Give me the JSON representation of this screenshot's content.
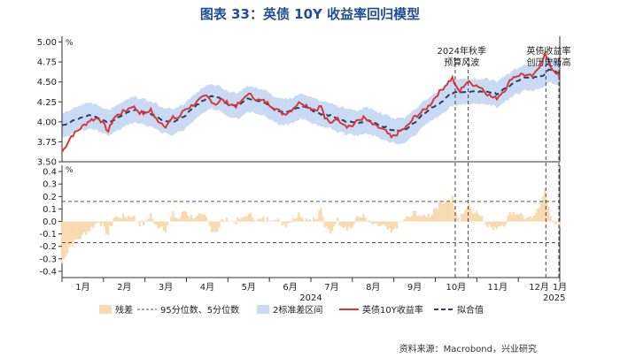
{
  "chart_data": {
    "title": "图表 33：英债 10Y 收益率回归模型",
    "type": "line",
    "top_panel": {
      "unit": "%",
      "ylim": [
        3.5,
        5.05
      ],
      "yticks": [
        "5.00",
        "4.75",
        "4.50",
        "4.25",
        "4.00",
        "3.75",
        "3.50"
      ]
    },
    "bottom_panel": {
      "unit": "%",
      "ylim": [
        -0.45,
        0.45
      ],
      "yticks": [
        "0.4",
        "0.3",
        "0.2",
        "0.1",
        "0.0",
        "-0.1",
        "-0.2",
        "-0.3",
        "-0.4"
      ],
      "band_upper": 0.16,
      "band_lower": -0.17
    },
    "x_months": [
      "1月",
      "2月",
      "3月",
      "4月",
      "5月",
      "6月",
      "7月",
      "8月",
      "9月",
      "10月",
      "11月",
      "12月",
      "1月"
    ],
    "x_year_labels": [
      "2024",
      "2025"
    ],
    "x_index_range": [
      0,
      269
    ],
    "actual_key": [
      [
        0,
        3.62
      ],
      [
        5,
        3.82
      ],
      [
        10,
        3.92
      ],
      [
        15,
        4.02
      ],
      [
        20,
        4.05
      ],
      [
        23,
        3.95
      ],
      [
        25,
        3.88
      ],
      [
        28,
        4.05
      ],
      [
        31,
        4.1
      ],
      [
        35,
        4.15
      ],
      [
        38,
        4.2
      ],
      [
        42,
        4.12
      ],
      [
        45,
        4.1
      ],
      [
        48,
        4.16
      ],
      [
        50,
        4.05
      ],
      [
        53,
        4.0
      ],
      [
        56,
        3.95
      ],
      [
        60,
        4.05
      ],
      [
        63,
        4.05
      ],
      [
        66,
        4.15
      ],
      [
        70,
        4.2
      ],
      [
        73,
        4.25
      ],
      [
        76,
        4.3
      ],
      [
        78,
        4.32
      ],
      [
        80,
        4.28
      ],
      [
        83,
        4.22
      ],
      [
        86,
        4.28
      ],
      [
        88,
        4.25
      ],
      [
        91,
        4.22
      ],
      [
        94,
        4.2
      ],
      [
        97,
        4.25
      ],
      [
        100,
        4.35
      ],
      [
        103,
        4.32
      ],
      [
        106,
        4.27
      ],
      [
        109,
        4.26
      ],
      [
        112,
        4.22
      ],
      [
        115,
        4.18
      ],
      [
        118,
        4.12
      ],
      [
        120,
        4.1
      ],
      [
        123,
        4.13
      ],
      [
        126,
        4.2
      ],
      [
        129,
        4.25
      ],
      [
        131,
        4.22
      ],
      [
        134,
        4.18
      ],
      [
        137,
        4.15
      ],
      [
        140,
        4.2
      ],
      [
        142,
        4.05
      ],
      [
        145,
        3.98
      ],
      [
        148,
        4.05
      ],
      [
        151,
        4.0
      ],
      [
        154,
        3.95
      ],
      [
        157,
        3.95
      ],
      [
        160,
        4.02
      ],
      [
        163,
        4.05
      ],
      [
        166,
        4.0
      ],
      [
        169,
        3.95
      ],
      [
        172,
        3.92
      ],
      [
        175,
        3.88
      ],
      [
        178,
        3.8
      ],
      [
        181,
        3.85
      ],
      [
        184,
        3.9
      ],
      [
        187,
        3.95
      ],
      [
        190,
        4.05
      ],
      [
        193,
        4.1
      ],
      [
        196,
        4.15
      ],
      [
        199,
        4.22
      ],
      [
        202,
        4.32
      ],
      [
        205,
        4.4
      ],
      [
        208,
        4.48
      ],
      [
        211,
        4.55
      ],
      [
        213,
        4.43
      ],
      [
        215,
        4.38
      ],
      [
        217,
        4.45
      ],
      [
        219,
        4.5
      ],
      [
        221,
        4.48
      ],
      [
        224,
        4.46
      ],
      [
        227,
        4.42
      ],
      [
        230,
        4.35
      ],
      [
        233,
        4.3
      ],
      [
        235,
        4.3
      ],
      [
        237,
        4.35
      ],
      [
        240,
        4.42
      ],
      [
        243,
        4.55
      ],
      [
        246,
        4.58
      ],
      [
        249,
        4.6
      ],
      [
        252,
        4.57
      ],
      [
        255,
        4.58
      ],
      [
        258,
        4.7
      ],
      [
        261,
        4.85
      ],
      [
        263,
        4.75
      ],
      [
        265,
        4.66
      ],
      [
        267,
        4.62
      ],
      [
        269,
        4.55
      ]
    ],
    "fit_key": [
      [
        0,
        3.95
      ],
      [
        5,
        4.0
      ],
      [
        10,
        4.05
      ],
      [
        15,
        4.08
      ],
      [
        20,
        4.05
      ],
      [
        25,
        3.98
      ],
      [
        30,
        4.05
      ],
      [
        35,
        4.12
      ],
      [
        40,
        4.15
      ],
      [
        45,
        4.12
      ],
      [
        50,
        4.08
      ],
      [
        55,
        4.02
      ],
      [
        60,
        4.0
      ],
      [
        65,
        4.05
      ],
      [
        70,
        4.15
      ],
      [
        75,
        4.25
      ],
      [
        80,
        4.32
      ],
      [
        85,
        4.3
      ],
      [
        90,
        4.22
      ],
      [
        95,
        4.2
      ],
      [
        100,
        4.3
      ],
      [
        105,
        4.27
      ],
      [
        110,
        4.23
      ],
      [
        115,
        4.15
      ],
      [
        120,
        4.12
      ],
      [
        125,
        4.15
      ],
      [
        130,
        4.2
      ],
      [
        135,
        4.15
      ],
      [
        140,
        4.1
      ],
      [
        145,
        4.08
      ],
      [
        150,
        4.02
      ],
      [
        155,
        4.0
      ],
      [
        160,
        3.98
      ],
      [
        165,
        4.02
      ],
      [
        170,
        3.98
      ],
      [
        175,
        3.93
      ],
      [
        180,
        3.88
      ],
      [
        185,
        3.9
      ],
      [
        190,
        3.98
      ],
      [
        195,
        4.1
      ],
      [
        200,
        4.18
      ],
      [
        205,
        4.25
      ],
      [
        210,
        4.35
      ],
      [
        215,
        4.38
      ],
      [
        220,
        4.37
      ],
      [
        225,
        4.38
      ],
      [
        230,
        4.38
      ],
      [
        235,
        4.35
      ],
      [
        240,
        4.42
      ],
      [
        245,
        4.5
      ],
      [
        250,
        4.55
      ],
      [
        255,
        4.55
      ],
      [
        260,
        4.58
      ],
      [
        263,
        4.66
      ],
      [
        266,
        4.65
      ],
      [
        269,
        4.6
      ]
    ],
    "band_halfwidth": 0.16,
    "vlines_x": [
      212.5,
      219.5,
      261.5,
      268.5
    ],
    "annotations": [
      {
        "lines": [
          "2024年秋季",
          "预算风波"
        ],
        "x": 216
      },
      {
        "lines": [
          "英债收益率",
          "创历史新高"
        ],
        "x": 263
      }
    ],
    "legend": [
      {
        "label": "残差",
        "kind": "residual",
        "color": "#f8d9b0"
      },
      {
        "label": "95分位数、5分位数",
        "kind": "dashed-thin",
        "color": "#555555"
      },
      {
        "label": "2标准差区间",
        "kind": "band",
        "color": "#c9daf4"
      },
      {
        "label": "英债10Y收益率",
        "kind": "actual",
        "color": "#d9383a"
      },
      {
        "label": "拟合值",
        "kind": "fit",
        "color": "#2f3f5f"
      }
    ],
    "source": "资料来源：Macrobond，兴业研究"
  }
}
